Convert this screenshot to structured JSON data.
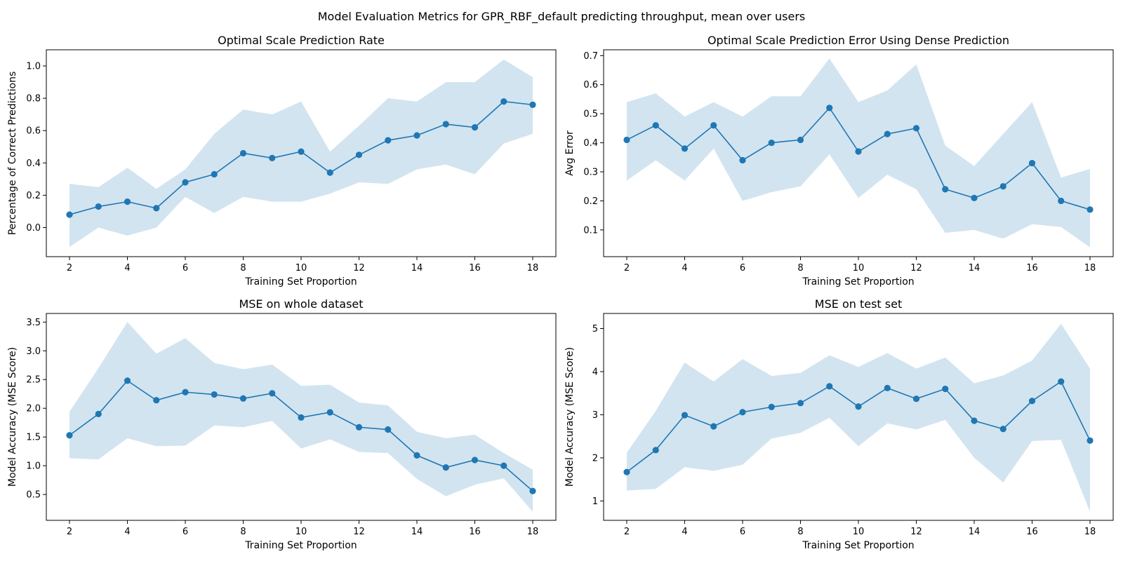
{
  "suptitle": "Model Evaluation Metrics for GPR_RBF_default predicting throughput, mean over users",
  "colors": {
    "line": "#1f77b4",
    "band": "#1f77b4",
    "axis": "#000000"
  },
  "chart_data": [
    {
      "type": "line",
      "title": "Optimal Scale Prediction Rate",
      "xlabel": "Training Set Proportion",
      "ylabel": "Percentage of Correct Predictions",
      "x": [
        2,
        3,
        4,
        5,
        6,
        7,
        8,
        9,
        10,
        11,
        12,
        13,
        14,
        15,
        16,
        17,
        18
      ],
      "series": [
        {
          "values": [
            0.08,
            0.13,
            0.16,
            0.12,
            0.28,
            0.33,
            0.46,
            0.43,
            0.47,
            0.34,
            0.45,
            0.54,
            0.57,
            0.64,
            0.62,
            0.78,
            0.76
          ],
          "lower": [
            -0.12,
            0.0,
            -0.05,
            0.0,
            0.19,
            0.09,
            0.19,
            0.16,
            0.16,
            0.21,
            0.28,
            0.27,
            0.36,
            0.39,
            0.33,
            0.52,
            0.58
          ],
          "upper": [
            0.27,
            0.25,
            0.37,
            0.24,
            0.36,
            0.58,
            0.73,
            0.7,
            0.78,
            0.47,
            0.63,
            0.8,
            0.78,
            0.9,
            0.9,
            1.04,
            0.93
          ]
        }
      ],
      "xlim": [
        1.2,
        18.8
      ],
      "ylim": [
        -0.18,
        1.1
      ],
      "xticks": [
        2,
        4,
        6,
        8,
        10,
        12,
        14,
        16,
        18
      ],
      "yticks": [
        0.0,
        0.2,
        0.4,
        0.6,
        0.8,
        1.0
      ],
      "ytick_labels": [
        "0.0",
        "0.2",
        "0.4",
        "0.6",
        "0.8",
        "1.0"
      ],
      "grid": false,
      "legend": "none"
    },
    {
      "type": "line",
      "title": "Optimal Scale Prediction Error Using Dense Prediction",
      "xlabel": "Training Set Proportion",
      "ylabel": "Avg Error",
      "x": [
        2,
        3,
        4,
        5,
        6,
        7,
        8,
        9,
        10,
        11,
        12,
        13,
        14,
        15,
        16,
        17,
        18
      ],
      "series": [
        {
          "values": [
            0.41,
            0.46,
            0.38,
            0.46,
            0.34,
            0.4,
            0.41,
            0.52,
            0.37,
            0.43,
            0.45,
            0.24,
            0.21,
            0.25,
            0.33,
            0.2,
            0.17
          ],
          "lower": [
            0.27,
            0.34,
            0.27,
            0.38,
            0.2,
            0.23,
            0.25,
            0.36,
            0.21,
            0.29,
            0.24,
            0.09,
            0.1,
            0.07,
            0.12,
            0.11,
            0.04
          ],
          "upper": [
            0.54,
            0.57,
            0.49,
            0.54,
            0.49,
            0.56,
            0.56,
            0.69,
            0.54,
            0.58,
            0.67,
            0.39,
            0.32,
            0.43,
            0.54,
            0.28,
            0.31
          ]
        }
      ],
      "xlim": [
        1.2,
        18.8
      ],
      "ylim": [
        0.008,
        0.72
      ],
      "xticks": [
        2,
        4,
        6,
        8,
        10,
        12,
        14,
        16,
        18
      ],
      "yticks": [
        0.1,
        0.2,
        0.3,
        0.4,
        0.5,
        0.6,
        0.7
      ],
      "ytick_labels": [
        "0.1",
        "0.2",
        "0.3",
        "0.4",
        "0.5",
        "0.6",
        "0.7"
      ],
      "grid": false,
      "legend": "none"
    },
    {
      "type": "line",
      "title": "MSE on whole dataset",
      "xlabel": "Training Set Proportion",
      "ylabel": "Model Accuracy (MSE Score)",
      "x": [
        2,
        3,
        4,
        5,
        6,
        7,
        8,
        9,
        10,
        11,
        12,
        13,
        14,
        15,
        16,
        17,
        18
      ],
      "series": [
        {
          "values": [
            1.53,
            1.9,
            2.48,
            2.14,
            2.28,
            2.24,
            2.17,
            2.26,
            1.84,
            1.93,
            1.67,
            1.63,
            1.18,
            0.97,
            1.1,
            1.0,
            0.56
          ],
          "lower": [
            1.13,
            1.11,
            1.48,
            1.34,
            1.35,
            1.7,
            1.67,
            1.78,
            1.3,
            1.46,
            1.24,
            1.22,
            0.77,
            0.47,
            0.67,
            0.78,
            0.2
          ],
          "upper": [
            1.94,
            2.7,
            3.5,
            2.95,
            3.22,
            2.79,
            2.68,
            2.76,
            2.39,
            2.41,
            2.1,
            2.05,
            1.59,
            1.48,
            1.54,
            1.22,
            0.93
          ]
        }
      ],
      "xlim": [
        1.2,
        18.8
      ],
      "ylim": [
        0.05,
        3.65
      ],
      "xticks": [
        2,
        4,
        6,
        8,
        10,
        12,
        14,
        16,
        18
      ],
      "yticks": [
        0.5,
        1.0,
        1.5,
        2.0,
        2.5,
        3.0,
        3.5
      ],
      "ytick_labels": [
        "0.5",
        "1.0",
        "1.5",
        "2.0",
        "2.5",
        "3.0",
        "3.5"
      ],
      "grid": false,
      "legend": "none"
    },
    {
      "type": "line",
      "title": "MSE on test set",
      "xlabel": "Training Set Proportion",
      "ylabel": "Model Accuracy (MSE Score)",
      "x": [
        2,
        3,
        4,
        5,
        6,
        7,
        8,
        9,
        10,
        11,
        12,
        13,
        14,
        15,
        16,
        17,
        18
      ],
      "series": [
        {
          "values": [
            1.67,
            2.18,
            2.99,
            2.73,
            3.06,
            3.18,
            3.27,
            3.66,
            3.19,
            3.62,
            3.37,
            3.6,
            2.86,
            2.67,
            3.32,
            3.77,
            2.4
          ],
          "lower": [
            1.24,
            1.28,
            1.78,
            1.7,
            1.84,
            2.45,
            2.58,
            2.93,
            2.27,
            2.8,
            2.66,
            2.88,
            2.0,
            1.43,
            2.39,
            2.42,
            0.75
          ],
          "upper": [
            2.12,
            3.09,
            4.21,
            3.77,
            4.29,
            3.9,
            3.97,
            4.38,
            4.11,
            4.43,
            4.07,
            4.33,
            3.73,
            3.91,
            4.26,
            5.11,
            4.07
          ]
        }
      ],
      "xlim": [
        1.2,
        18.8
      ],
      "ylim": [
        0.55,
        5.35
      ],
      "xticks": [
        2,
        4,
        6,
        8,
        10,
        12,
        14,
        16,
        18
      ],
      "yticks": [
        1,
        2,
        3,
        4,
        5
      ],
      "ytick_labels": [
        "1",
        "2",
        "3",
        "4",
        "5"
      ],
      "grid": false,
      "legend": "none"
    }
  ]
}
